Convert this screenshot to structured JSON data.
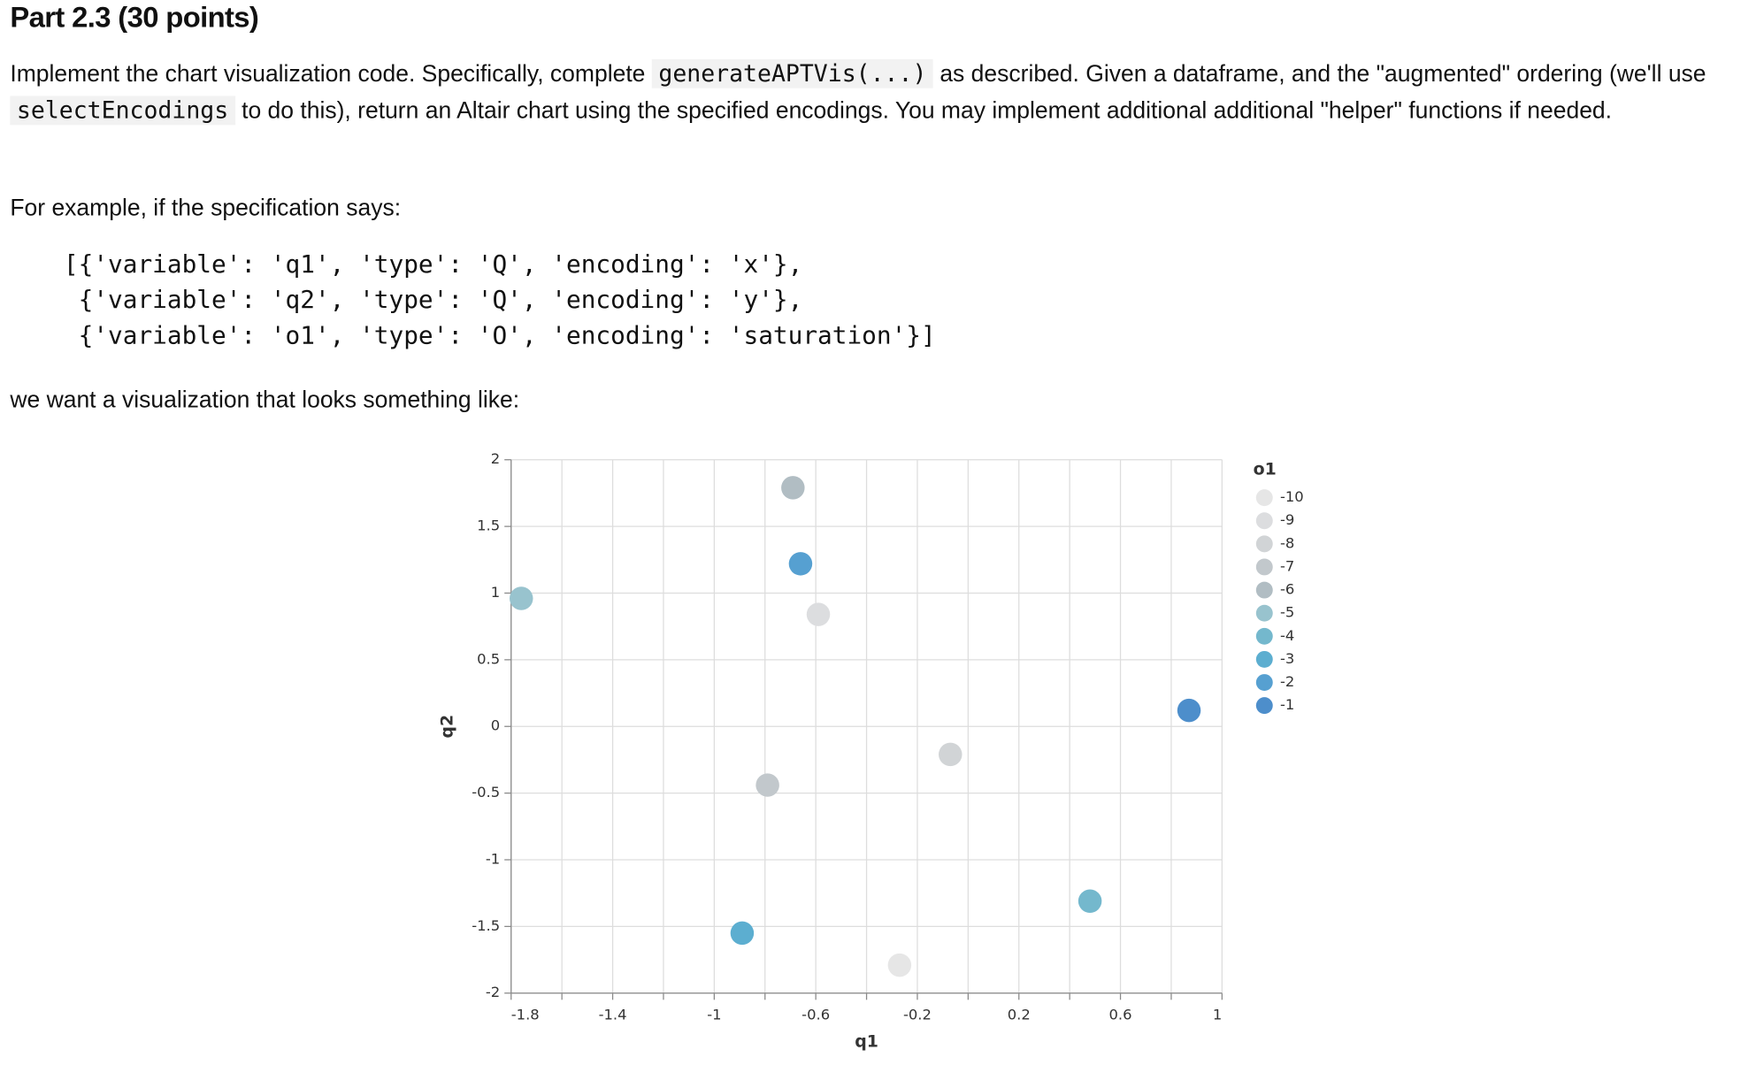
{
  "title": "Part 2.3 (30 points)",
  "paragraph1": [
    "Implement the chart visualization code. Specifically, complete ",
    "generateAPTVis(...)",
    " as described. Given a dataframe, and the \"augmented\" ordering (we'll use ",
    "selectEncodings",
    " to do this), return an Altair chart using the specified encodings. You may implement additional additional \"helper\" functions if needed."
  ],
  "paragraph2": "For example, if the specification says:",
  "code_lines": [
    "[{'variable': 'q1', 'type': 'Q', 'encoding': 'x'},",
    " {'variable': 'q2', 'type': 'Q', 'encoding': 'y'},",
    " {'variable': 'o1', 'type': 'O', 'encoding': 'saturation'}]"
  ],
  "paragraph3": "we want a visualization that looks something like:",
  "chart_data": {
    "type": "scatter",
    "x_label": "q1",
    "y_label": "q2",
    "x": [
      -0.69,
      -0.66,
      -1.76,
      -0.59,
      0.87,
      -0.07,
      -0.79,
      0.48,
      -0.89,
      -0.27
    ],
    "y": [
      1.79,
      1.22,
      0.96,
      0.84,
      0.12,
      -0.21,
      -0.44,
      -1.31,
      -1.55,
      -1.79
    ],
    "o1": [
      -6,
      -2,
      -5,
      -9,
      -1,
      -8,
      -7,
      -4,
      -3,
      -10
    ],
    "xlim": [
      -1.8,
      1.0
    ],
    "xticks": [
      -1.8,
      -1.4,
      -1.0,
      -0.6,
      -0.2,
      0.2,
      0.6,
      1.0
    ],
    "x_minor_ticks": [
      -1.6,
      -1.2,
      -0.8,
      -0.4,
      0.0,
      0.4,
      0.8
    ],
    "ylim": [
      -2.0,
      2.0
    ],
    "yticks": [
      -2.0,
      -1.5,
      -1.0,
      -0.5,
      0.0,
      0.5,
      1.0,
      1.5,
      2.0
    ],
    "grid": true,
    "legend": {
      "title": "o1",
      "position": "right",
      "levels": [
        -10,
        -9,
        -8,
        -7,
        -6,
        -5,
        -4,
        -3,
        -2,
        -1
      ],
      "colors": [
        "#e6e6e6",
        "#dcdddf",
        "#d1d4d6",
        "#c2c8cc",
        "#b1bdc3",
        "#98c3ce",
        "#74b8cd",
        "#5caed0",
        "#56a0d1",
        "#4d8ecb"
      ]
    }
  }
}
